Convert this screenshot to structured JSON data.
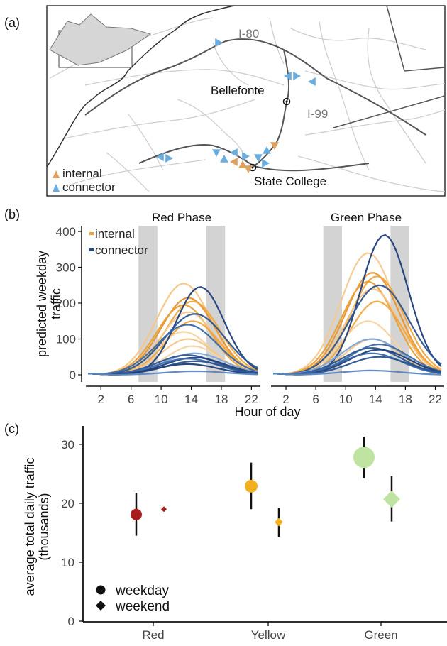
{
  "panel_labels": [
    "(a)",
    "(b)",
    "(c)"
  ],
  "map": {
    "highways": [
      "I-80",
      "I-99"
    ],
    "places": [
      "Bellefonte",
      "State College"
    ],
    "legend": [
      {
        "label": "internal",
        "color": "#dea15f"
      },
      {
        "label": "connector",
        "color": "#6aaee0"
      }
    ],
    "colors": {
      "internal": "#dea15f",
      "connector": "#6aaee0",
      "road": "#cccccc",
      "highway": "#666666"
    }
  },
  "chart_data": [
    {
      "type": "line",
      "panel": "(b)",
      "ylabel": "predicted weekday traffic",
      "xlabel": "Hour of day",
      "ylim": [
        0,
        400
      ],
      "xlim": [
        0,
        23
      ],
      "yticks": [
        0,
        100,
        200,
        300,
        400
      ],
      "xticks": [
        2,
        6,
        10,
        14,
        18,
        22
      ],
      "peak_hour_bands": [
        [
          7,
          9.5
        ],
        [
          16,
          18.5
        ]
      ],
      "legend": [
        {
          "label": "internal",
          "color": "#f0a030"
        },
        {
          "label": "connector",
          "color": "#1f4e8c"
        }
      ],
      "facets": [
        {
          "title": "Red Phase",
          "internal_peaks": [
            255,
            215,
            205,
            195,
            175,
            150,
            120,
            100,
            80
          ],
          "internal_colors": [
            "#f5c588",
            "#e8952d",
            "#f0a840",
            "#eaa035",
            "#f5c588",
            "#f0a840",
            "#f7d3a0",
            "#f5c588",
            "#f7d3a0"
          ],
          "connector_peaks": [
            245,
            170,
            140,
            60,
            55,
            48,
            45,
            38,
            30,
            10
          ],
          "connector_colors": [
            "#1f3e7a",
            "#2a5590",
            "#3a68a8",
            "#7fa4d3",
            "#2a5590",
            "#1f3e7a",
            "#3a68a8",
            "#2a5590",
            "#1f3e7a",
            "#5b86c0"
          ]
        },
        {
          "title": "Green Phase",
          "internal_peaks": [
            340,
            285,
            275,
            260,
            240,
            205,
            150,
            100
          ],
          "internal_colors": [
            "#f7c98e",
            "#e8952d",
            "#f0a840",
            "#eaa035",
            "#f5c588",
            "#f0a840",
            "#f7d3a0",
            "#f5c588"
          ],
          "connector_peaks": [
            390,
            250,
            100,
            85,
            75,
            70,
            60,
            50,
            12
          ],
          "connector_colors": [
            "#1f3e7a",
            "#2a5590",
            "#7fa4d3",
            "#3a68a8",
            "#2a5590",
            "#1f3e7a",
            "#3a68a8",
            "#2a5590",
            "#5b86c0"
          ]
        }
      ]
    },
    {
      "type": "scatter",
      "panel": "(c)",
      "ylabel": "average total daily traffic (thousands)",
      "ylim": [
        0,
        33
      ],
      "yticks": [
        0,
        10,
        20,
        30
      ],
      "categories": [
        "Red",
        "Yellow",
        "Green"
      ],
      "colors": [
        "#aa1c1c",
        "#f0b020",
        "#bfe3a0"
      ],
      "series": [
        {
          "name": "weekday",
          "values": [
            18.1,
            22.9,
            27.8
          ],
          "err_low": [
            14.5,
            19.0,
            24.2
          ],
          "err_high": [
            21.8,
            26.9,
            31.3
          ]
        },
        {
          "name": "weekend",
          "values": [
            19.0,
            16.8,
            20.7
          ],
          "err_low": [
            null,
            14.3,
            16.9
          ],
          "err_high": [
            null,
            19.2,
            24.6
          ]
        }
      ]
    }
  ]
}
